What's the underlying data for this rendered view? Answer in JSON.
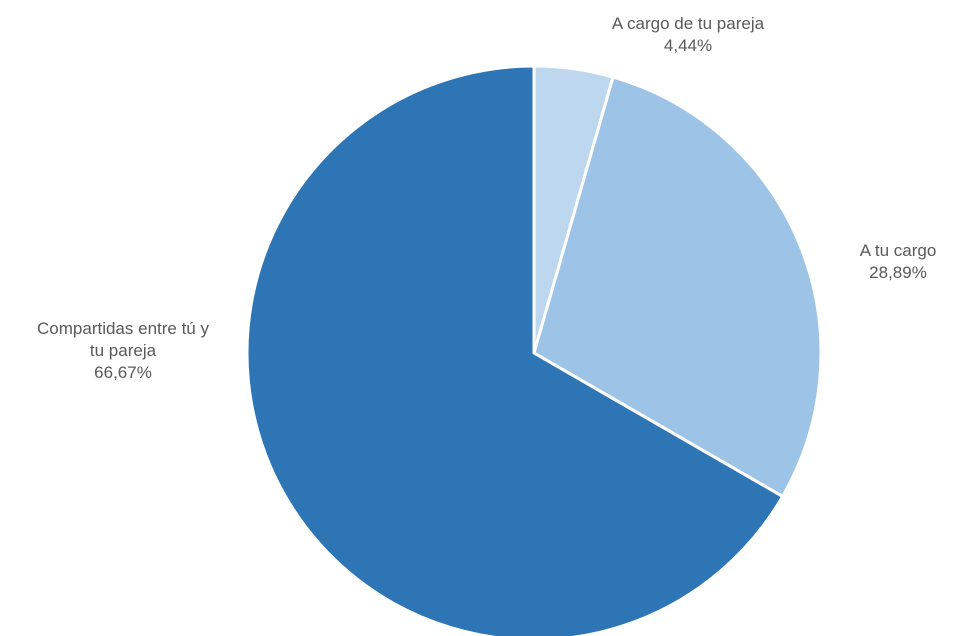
{
  "chart_data": {
    "type": "pie",
    "title": "",
    "start_angle_deg": 0,
    "direction": "clockwise",
    "slices": [
      {
        "label_lines": [
          "A cargo de tu pareja"
        ],
        "value": 4.44,
        "value_label": "4,44%",
        "color": "#bdd7ee"
      },
      {
        "label_lines": [
          "A tu cargo"
        ],
        "value": 28.89,
        "value_label": "28,89%",
        "color": "#9dc3e6"
      },
      {
        "label_lines": [
          "Compartidas entre tú y",
          "tu pareja"
        ],
        "value": 66.67,
        "value_label": "66,67%",
        "color": "#2e75b6"
      }
    ],
    "legend": "none",
    "border_color": "#ffffff"
  }
}
